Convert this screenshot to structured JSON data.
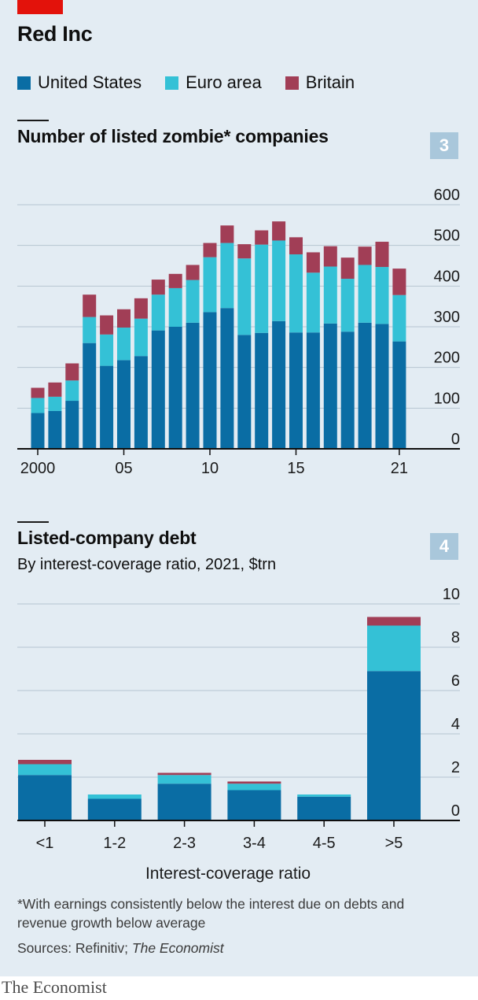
{
  "header": {
    "title": "Red Inc"
  },
  "legend": [
    {
      "name": "United States",
      "color": "#0a6da4"
    },
    {
      "name": "Euro area",
      "color": "#34c1d6"
    },
    {
      "name": "Britain",
      "color": "#a13e56"
    }
  ],
  "chart_data": [
    {
      "id": "3",
      "type": "bar",
      "stacked": true,
      "title": "Number of listed zombie* companies",
      "x": [
        "2000",
        "2001",
        "2002",
        "2003",
        "2004",
        "2005",
        "2006",
        "2007",
        "2008",
        "2009",
        "2010",
        "2011",
        "2012",
        "2013",
        "2014",
        "2015",
        "2016",
        "2017",
        "2018",
        "2019",
        "2020",
        "2021"
      ],
      "x_tick_labels": [
        "2000",
        "05",
        "10",
        "15",
        "21"
      ],
      "x_tick_years": [
        2000,
        2005,
        2010,
        2015,
        2021
      ],
      "y_ticks": [
        "0",
        "100",
        "200",
        "300",
        "400",
        "500",
        "600"
      ],
      "ylim": [
        0,
        600
      ],
      "grid": true,
      "series": [
        {
          "name": "United States",
          "values": [
            88,
            93,
            118,
            260,
            204,
            218,
            228,
            291,
            300,
            310,
            336,
            346,
            280,
            285,
            314,
            286,
            286,
            308,
            288,
            310,
            307,
            264
          ]
        },
        {
          "name": "Euro area",
          "values": [
            37,
            35,
            50,
            64,
            77,
            80,
            92,
            88,
            95,
            105,
            135,
            160,
            188,
            217,
            198,
            192,
            147,
            140,
            130,
            142,
            140,
            114
          ]
        },
        {
          "name": "Britain",
          "values": [
            25,
            35,
            42,
            55,
            47,
            45,
            50,
            37,
            35,
            37,
            35,
            43,
            35,
            35,
            47,
            42,
            50,
            50,
            52,
            45,
            62,
            65
          ]
        }
      ]
    },
    {
      "id": "4",
      "type": "bar",
      "stacked": true,
      "title": "Listed-company debt",
      "subtitle": "By interest-coverage ratio, 2021, $trn",
      "categories": [
        "<1",
        "1-2",
        "2-3",
        "3-4",
        "4-5",
        ">5"
      ],
      "xlabel": "Interest-coverage ratio",
      "y_ticks": [
        "0",
        "2",
        "4",
        "6",
        "8",
        "10"
      ],
      "ylim": [
        0,
        10
      ],
      "grid": true,
      "series": [
        {
          "name": "United States",
          "values": [
            2.1,
            1.0,
            1.7,
            1.4,
            1.1,
            6.9
          ]
        },
        {
          "name": "Euro area",
          "values": [
            0.5,
            0.2,
            0.4,
            0.3,
            0.1,
            2.1
          ]
        },
        {
          "name": "Britain",
          "values": [
            0.2,
            0.0,
            0.1,
            0.1,
            0.0,
            0.4
          ]
        }
      ]
    }
  ],
  "footnote": "*With earnings consistently below the interest due on debts and revenue growth below average",
  "sources": {
    "label": "Sources: Refinitiv; ",
    "source_italic": "The Economist"
  },
  "brand": "The Economist"
}
